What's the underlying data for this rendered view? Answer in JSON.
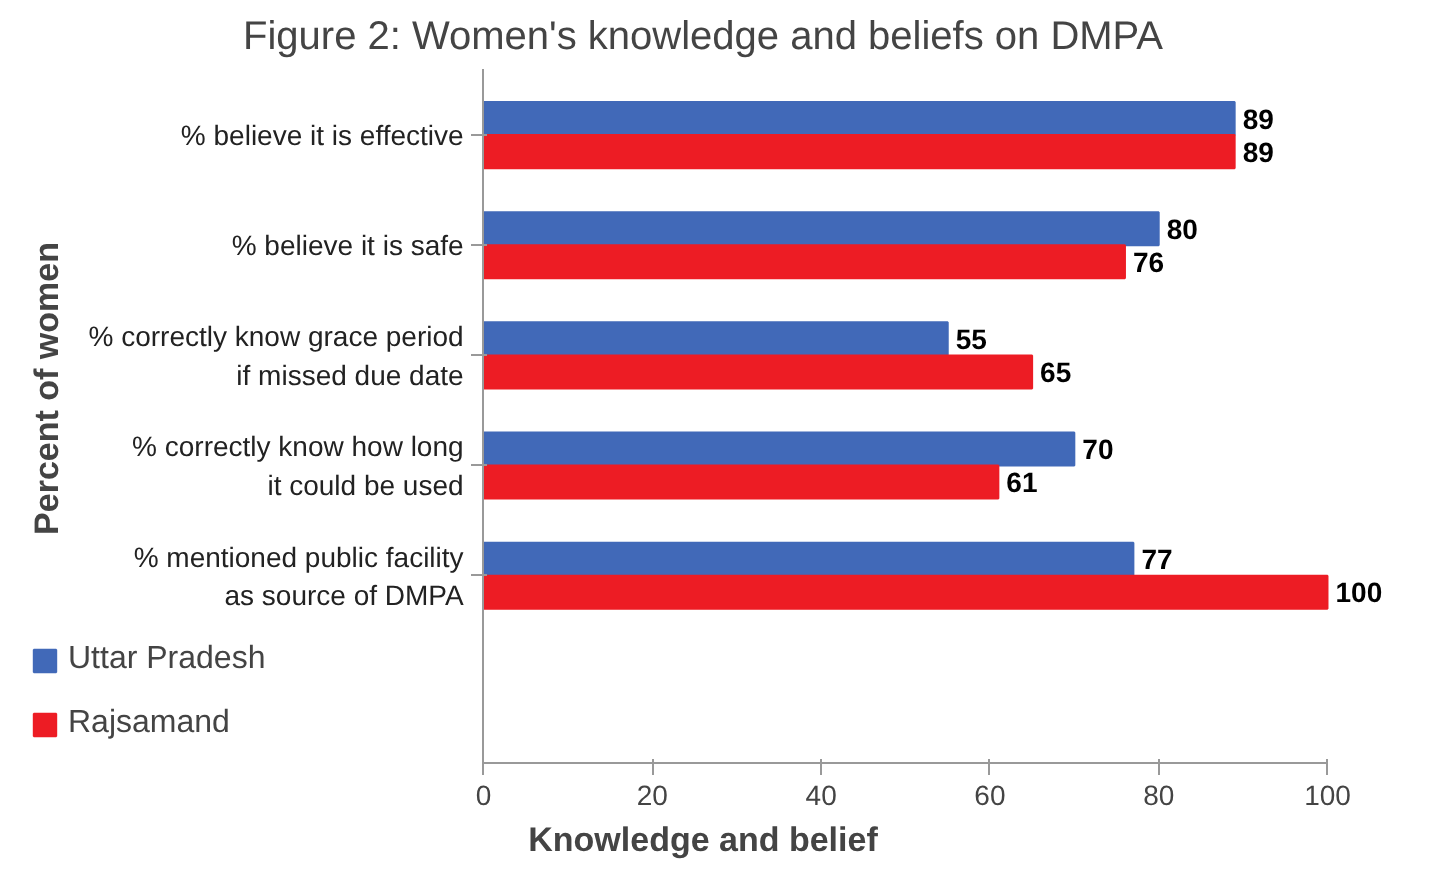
{
  "chart_data": {
    "type": "bar",
    "orientation": "horizontal",
    "title": "Figure 2: Women's knowledge and beliefs on DMPA",
    "xlabel": "Knowledge and belief",
    "ylabel": "Percent of women",
    "categories": [
      "% believe it is effective",
      "% believe it is safe",
      "% correctly know grace period\nif missed due date",
      "% correctly know how long\nit could be used",
      "% mentioned public facility\nas source of DMPA"
    ],
    "series": [
      {
        "name": "Uttar Pradesh",
        "color": "#4169b8",
        "values": [
          89,
          80,
          55,
          70,
          77
        ]
      },
      {
        "name": "Rajsamand",
        "color": "#ed1c24",
        "values": [
          89,
          76,
          65,
          61,
          100
        ]
      }
    ],
    "xlim": [
      0,
      100
    ],
    "xticks": [
      0,
      20,
      40,
      60,
      80,
      100
    ],
    "grid": false,
    "legend": "bottom left",
    "data_labels": true
  }
}
